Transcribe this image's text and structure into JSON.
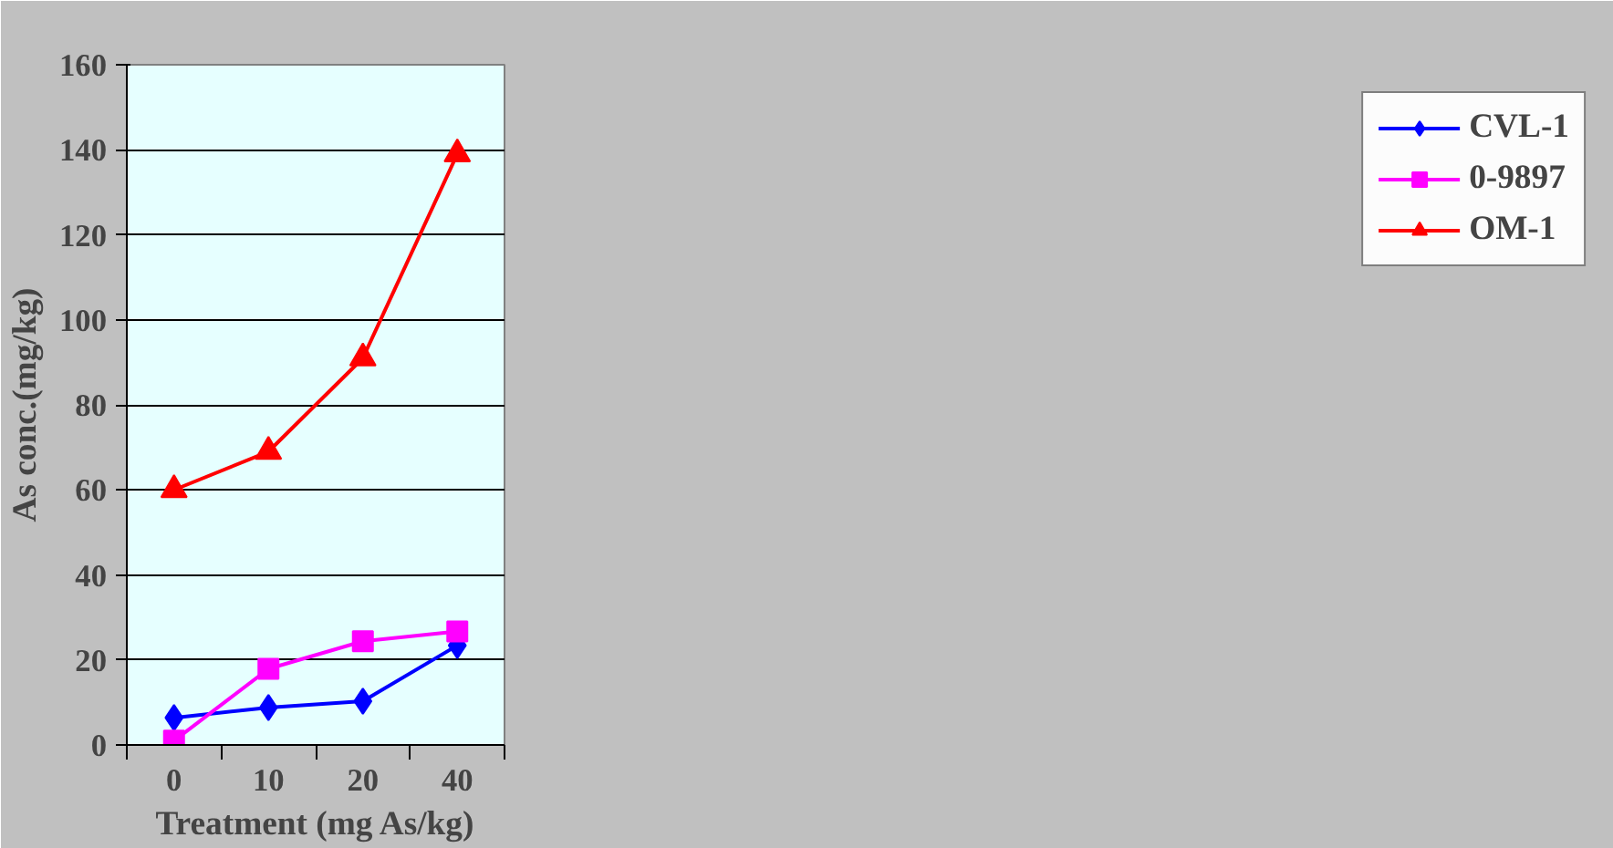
{
  "chart_data": {
    "type": "line",
    "xlabel": "Treatment (mg As/kg)",
    "ylabel": "As conc.(mg/kg)",
    "categories": [
      "0",
      "10",
      "20",
      "40"
    ],
    "series": [
      {
        "name": "CVL-1",
        "color": "#0000ff",
        "marker": "diamond",
        "values": [
          6.4,
          8.8,
          10.3,
          23.4
        ]
      },
      {
        "name": "0-9897",
        "color": "#ff00ff",
        "marker": "square",
        "values": [
          1,
          17.9,
          24.4,
          26.7
        ]
      },
      {
        "name": "OM-1",
        "color": "#ff0000",
        "marker": "triangle",
        "values": [
          60,
          69,
          91,
          139
        ]
      }
    ],
    "ylim": [
      0,
      160
    ],
    "yticks": [
      0,
      20,
      40,
      60,
      80,
      100,
      120,
      140,
      160
    ],
    "grid": "y",
    "legend": "right"
  }
}
